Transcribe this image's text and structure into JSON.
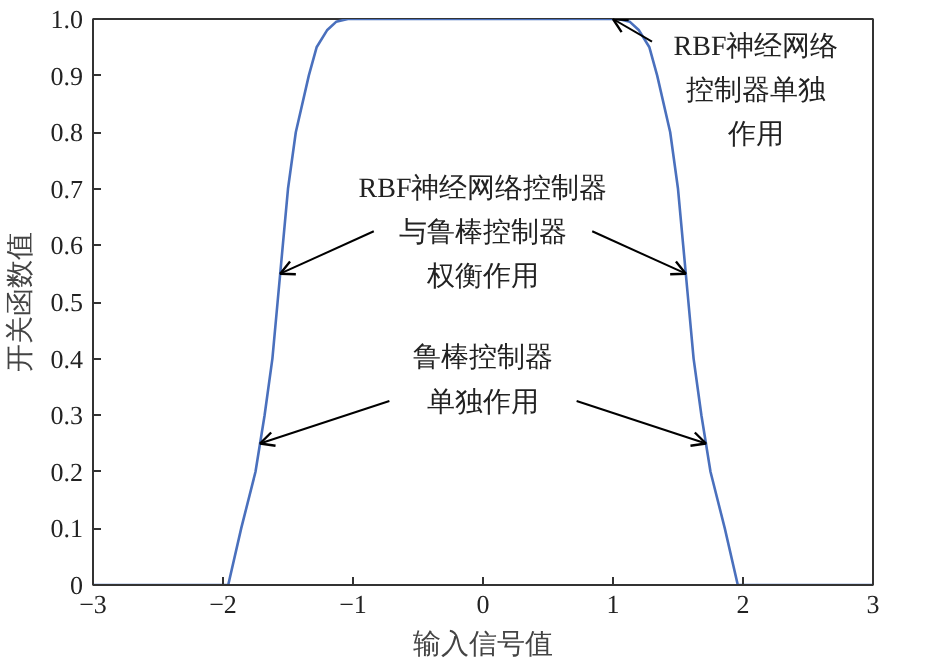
{
  "chart_data": {
    "type": "line",
    "xlabel": "输入信号值",
    "ylabel": "开关函数值",
    "x": [
      -3,
      -2.5,
      -1.96,
      -1.86,
      -1.75,
      -1.68,
      -1.62,
      -1.58,
      -1.54,
      -1.5,
      -1.44,
      -1.34,
      -1.28,
      -1.2,
      -1.13,
      -1.04,
      0,
      1.04,
      1.13,
      1.2,
      1.28,
      1.34,
      1.44,
      1.5,
      1.54,
      1.58,
      1.62,
      1.68,
      1.75,
      1.86,
      1.96,
      2.5,
      3
    ],
    "series": [
      {
        "color": "#4a70bd",
        "values": [
          0,
          0,
          0,
          0.1,
          0.2,
          0.3,
          0.4,
          0.5,
          0.6,
          0.7,
          0.8,
          0.9,
          0.95,
          0.98,
          0.995,
          1,
          1,
          1,
          0.995,
          0.98,
          0.95,
          0.9,
          0.8,
          0.7,
          0.6,
          0.5,
          0.4,
          0.3,
          0.2,
          0.1,
          0,
          0,
          0
        ]
      }
    ],
    "xlim": [
      -3,
      3
    ],
    "ylim": [
      0,
      1
    ],
    "xticks": [
      {
        "value": -3,
        "label": "−3"
      },
      {
        "value": -2,
        "label": "−2"
      },
      {
        "value": -1,
        "label": "−1"
      },
      0,
      1,
      2,
      3
    ],
    "yticks": [
      0,
      0.1,
      0.2,
      0.3,
      0.4,
      0.5,
      0.6,
      0.7,
      0.8,
      0.9,
      {
        "value": 1,
        "label": "1.0"
      }
    ],
    "grid": false,
    "marker": "none",
    "line_style": "solid",
    "annotations": [
      {
        "text": "RBF神经网络控制器单独作用",
        "x": 1.0,
        "y": 1.0
      },
      {
        "text": "RBF神经网络控制器与鲁棒控制器权衡作用",
        "x": -1.56,
        "y": 0.55
      },
      {
        "text": "鲁棒控制器单独作用",
        "x": -1.715,
        "y": 0.25
      }
    ]
  }
}
